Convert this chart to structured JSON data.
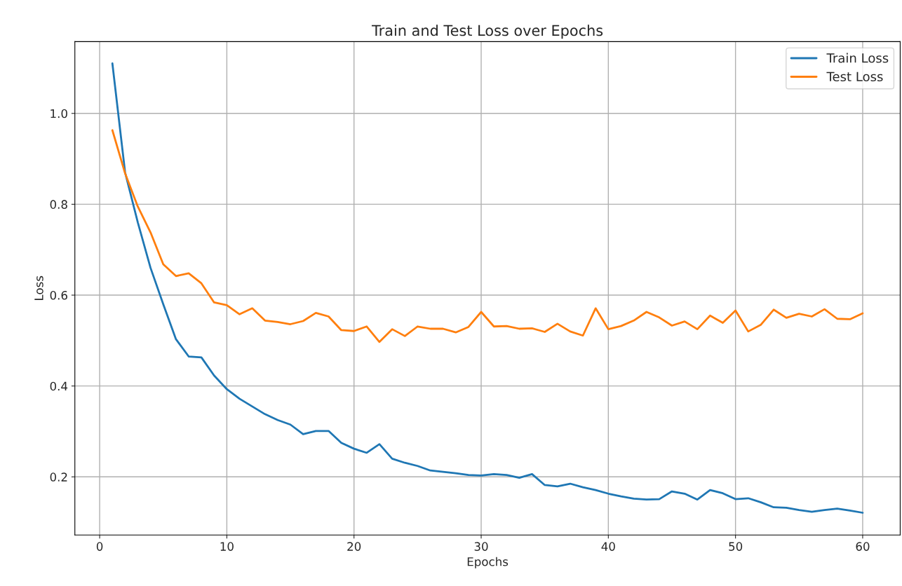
{
  "chart_data": {
    "type": "line",
    "title": "Train and Test Loss over Epochs",
    "xlabel": "Epochs",
    "ylabel": "Loss",
    "x": [
      1,
      2,
      3,
      4,
      5,
      6,
      7,
      8,
      9,
      10,
      11,
      12,
      13,
      14,
      15,
      16,
      17,
      18,
      19,
      20,
      21,
      22,
      23,
      24,
      25,
      26,
      27,
      28,
      29,
      30,
      31,
      32,
      33,
      34,
      35,
      36,
      37,
      38,
      39,
      40,
      41,
      42,
      43,
      44,
      45,
      46,
      47,
      48,
      49,
      50,
      51,
      52,
      53,
      54,
      55,
      56,
      57,
      58,
      59,
      60
    ],
    "series": [
      {
        "name": "Train Loss",
        "color": "#1f77b4",
        "values": [
          1.11,
          0.87,
          0.76,
          0.66,
          0.58,
          0.503,
          0.465,
          0.463,
          0.423,
          0.393,
          0.372,
          0.355,
          0.338,
          0.325,
          0.315,
          0.294,
          0.301,
          0.301,
          0.275,
          0.262,
          0.253,
          0.272,
          0.24,
          0.231,
          0.224,
          0.214,
          0.211,
          0.208,
          0.204,
          0.203,
          0.206,
          0.204,
          0.198,
          0.206,
          0.182,
          0.179,
          0.185,
          0.177,
          0.171,
          0.163,
          0.157,
          0.152,
          0.15,
          0.151,
          0.168,
          0.163,
          0.15,
          0.171,
          0.164,
          0.151,
          0.153,
          0.144,
          0.133,
          0.132,
          0.127,
          0.123,
          0.127,
          0.13,
          0.126,
          0.121
        ]
      },
      {
        "name": "Test Loss",
        "color": "#ff7f0e",
        "values": [
          0.963,
          0.868,
          0.795,
          0.738,
          0.668,
          0.642,
          0.648,
          0.626,
          0.584,
          0.578,
          0.558,
          0.571,
          0.544,
          0.541,
          0.536,
          0.543,
          0.561,
          0.553,
          0.523,
          0.521,
          0.531,
          0.497,
          0.525,
          0.51,
          0.531,
          0.526,
          0.526,
          0.518,
          0.53,
          0.563,
          0.531,
          0.532,
          0.526,
          0.527,
          0.519,
          0.537,
          0.52,
          0.511,
          0.571,
          0.525,
          0.532,
          0.544,
          0.563,
          0.551,
          0.533,
          0.542,
          0.525,
          0.555,
          0.539,
          0.566,
          0.52,
          0.535,
          0.568,
          0.55,
          0.559,
          0.553,
          0.569,
          0.548,
          0.547,
          0.56
        ]
      }
    ],
    "xlim": [
      -1.95,
      62.95
    ],
    "ylim": [
      0.072,
      1.158
    ],
    "xticks": [
      0,
      10,
      20,
      30,
      40,
      50,
      60
    ],
    "yticks": [
      0.2,
      0.4,
      0.6,
      0.8,
      {
        "value": 1,
        "label": "1.0"
      }
    ],
    "grid": true,
    "legend": "top right",
    "marker": "none",
    "line_style": "solid"
  }
}
